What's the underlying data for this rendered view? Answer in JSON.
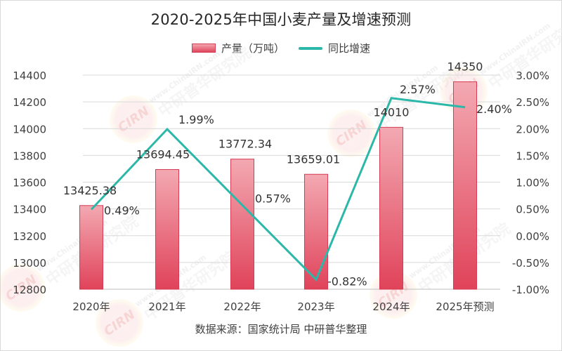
{
  "title": "2020-2025年中国小麦产量及增速预测",
  "legend": {
    "bar_label": "产量（万吨）",
    "line_label": "同比增速"
  },
  "source": "数据来源：国家统计局 中研普华整理",
  "watermark": {
    "logo_text": "CIRN",
    "url_text": "www.ChinaIRN.com",
    "cn_text": "中研普华研究院"
  },
  "colors": {
    "bar_top": "#f3a9b2",
    "bar_bottom": "#e0435a",
    "bar_border": "#d63b52",
    "line": "#2bb8a8",
    "grid": "#d9d9d9",
    "text": "#404040"
  },
  "chart_data": {
    "type": "bar+line",
    "title": "2020-2025年中国小麦产量及增速预测",
    "categories": [
      "2020年",
      "2021年",
      "2022年",
      "2023年",
      "2024年",
      "2025年预测"
    ],
    "series": [
      {
        "name": "产量（万吨）",
        "type": "bar",
        "axis": "left",
        "values": [
          13425.38,
          13694.45,
          13772.34,
          13659.01,
          14010,
          14350
        ],
        "labels": [
          "13425.38",
          "13694.45",
          "13772.34",
          "13659.01",
          "14010",
          "14350"
        ]
      },
      {
        "name": "同比增速",
        "type": "line",
        "axis": "right",
        "values": [
          0.49,
          1.99,
          0.57,
          -0.82,
          2.57,
          2.4
        ],
        "labels": [
          "0.49%",
          "1.99%",
          "0.57%",
          "-0.82%",
          "2.57%",
          "2.40%"
        ]
      }
    ],
    "left_axis": {
      "ylim": [
        12800,
        14400
      ],
      "ticks": [
        "14400",
        "14200",
        "14000",
        "13800",
        "13600",
        "13400",
        "13200",
        "13000",
        "12800"
      ]
    },
    "right_axis": {
      "ylim": [
        -1.0,
        3.0
      ],
      "ticks": [
        "3.00%",
        "2.50%",
        "2.00%",
        "1.50%",
        "1.00%",
        "0.50%",
        "0.00%",
        "-0.50%",
        "-1.00%"
      ]
    },
    "grid": true,
    "legend_position": "top",
    "source": "数据来源：国家统计局 中研普华整理"
  }
}
